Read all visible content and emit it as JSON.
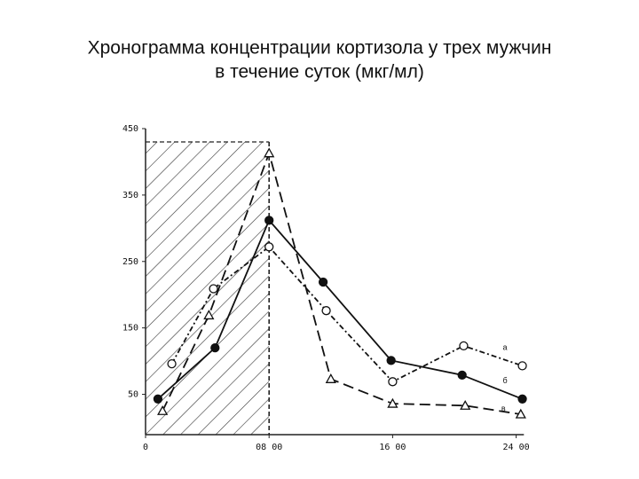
{
  "chart_data": {
    "type": "line",
    "title": [
      "Хронограмма концентрации кортизола у трех мужчин",
      "в течение суток (мкг/мл)"
    ],
    "xlim": [
      0,
      24.5
    ],
    "ylim": [
      0,
      450
    ],
    "xticks": [
      0,
      {
        "value": 8,
        "label": "08 00"
      },
      {
        "value": 16,
        "label": "16 00"
      },
      {
        "value": 24,
        "label": "24 00"
      }
    ],
    "yticks": [
      50,
      150,
      250,
      350,
      450
    ],
    "shaded": {
      "x": [
        0,
        8
      ],
      "y": 430
    },
    "series": [
      {
        "name": "а",
        "color": "#111",
        "marker": "open-circle",
        "dash": "dashdot",
        "x": [
          1.7,
          4.4,
          8,
          11.7,
          16,
          20.6,
          24.4
        ],
        "values": [
          96,
          209,
          272,
          176,
          69,
          123,
          93
        ]
      },
      {
        "name": "б",
        "color": "#111",
        "marker": "filled-circle",
        "dash": "solid",
        "x": [
          0.8,
          4.5,
          8,
          11.5,
          15.9,
          20.5,
          24.4
        ],
        "values": [
          43,
          120,
          312,
          219,
          101,
          79,
          43
        ]
      },
      {
        "name": "в",
        "color": "#111",
        "marker": "triangle",
        "dash": "dashed",
        "x": [
          1.1,
          4.1,
          8,
          12,
          16,
          20.7,
          24.3
        ],
        "values": [
          25,
          169,
          413,
          73,
          36,
          33,
          20
        ]
      }
    ]
  }
}
